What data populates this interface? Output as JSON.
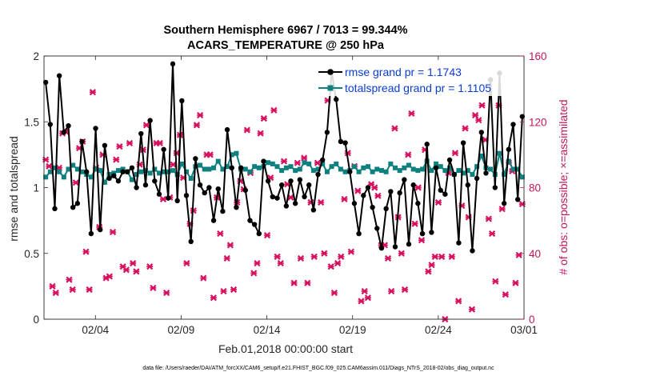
{
  "chart_data": {
    "type": "line",
    "title_line1": "Southern Hemisphere 6967 / 7013 = 99.344%",
    "title_line2": "ACARS_TEMPERATURE @ 250 hPa",
    "xlabel": "Feb.01,2018 00:00:00 start",
    "ylabel_left": "rmse and totalspread",
    "ylabel_right": "# of obs: o=possible; ×=assimilated",
    "xlim": [
      1.0,
      29.0
    ],
    "ylim_left": [
      0,
      2
    ],
    "ylim_right": [
      0,
      160
    ],
    "x_ticks": [
      {
        "x": 4,
        "label": "02/04"
      },
      {
        "x": 9,
        "label": "02/09"
      },
      {
        "x": 14,
        "label": "02/14"
      },
      {
        "x": 19,
        "label": "02/19"
      },
      {
        "x": 24,
        "label": "02/24"
      },
      {
        "x": 29,
        "label": "03/01"
      }
    ],
    "y_ticks_left": [
      "0",
      "0.5",
      "1",
      "1.5",
      "2"
    ],
    "y_ticks_right": [
      "0",
      "40",
      "80",
      "120",
      "160"
    ],
    "footer": "data file: /Users/raeder/DAI/ATM_forcXX/CAM6_setup/f.e21.FHIST_BGC.f09_025.CAM6assim.011/Diags_NTrS_2018-02/obs_diag_output.nc",
    "colors": {
      "rmse": "#000000",
      "spread": "#0f8080",
      "obs": "#d7105f",
      "legend_text": "#0a3cd7"
    },
    "series": [
      {
        "name": "rmse grand pr = 1.1743",
        "values": [
          1.8,
          1.48,
          0.84,
          1.85,
          1.42,
          1.47,
          0.85,
          0.88,
          1.35,
          1.12,
          0.65,
          1.45,
          0.68,
          1.32,
          1.07,
          1.09,
          1.05,
          1.12,
          1.12,
          1.15,
          1.0,
          1.41,
          1.02,
          1.51,
          1.05,
          0.95,
          1.29,
          0.92,
          1.94,
          0.9,
          1.66,
          0.94,
          0.59,
          1.22,
          1.02,
          0.96,
          1.0,
          0.75,
          0.99,
          0.82,
          1.44,
          1.15,
          0.85,
          1.15,
          0.98,
          0.75,
          0.72,
          0.65,
          1.2,
          1.05,
          0.93,
          0.92,
          1.02,
          0.86,
          1.05,
          0.88,
          1.06,
          0.93,
          1.02,
          0.83,
          1.1,
          1.21,
          1.42,
          1.88,
          1.67,
          1.35,
          1.34,
          1.12,
          0.88,
          0.65,
          0.94,
          1.0,
          0.85,
          0.69,
          0.54,
          0.84,
          0.97,
          0.55,
          0.96,
          1.06,
          0.57,
          1.02,
          0.88,
          0.65,
          1.33,
          0.66,
          1.15,
          0.98,
          0.95,
          1.21,
          1.1,
          0.58,
          1.34,
          1.02,
          0.52,
          1.07,
          1.42,
          1.11,
          1.82,
          1.0,
          1.87,
          0.88,
          1.29,
          1.48,
          0.91,
          1.54
        ]
      },
      {
        "name": "totalspread grand pr = 1.1105",
        "values": [
          1.08,
          1.12,
          1.15,
          1.12,
          1.08,
          1.14,
          1.17,
          1.14,
          1.12,
          1.1,
          1.08,
          1.14,
          1.13,
          1.04,
          1.1,
          1.11,
          1.13,
          1.14,
          1.12,
          1.06,
          1.1,
          1.12,
          1.13,
          1.11,
          1.14,
          1.11,
          1.12,
          1.12,
          1.13,
          1.1,
          1.18,
          1.12,
          1.07,
          1.16,
          1.17,
          1.14,
          1.14,
          1.15,
          1.2,
          1.14,
          1.16,
          1.25,
          1.26,
          1.14,
          1.14,
          1.12,
          1.16,
          1.15,
          1.16,
          1.19,
          1.18,
          1.16,
          1.13,
          1.15,
          1.16,
          1.13,
          1.14,
          1.19,
          1.18,
          1.13,
          1.14,
          1.18,
          1.12,
          1.16,
          1.18,
          1.14,
          1.12,
          1.13,
          1.16,
          1.12,
          1.15,
          1.16,
          1.12,
          1.14,
          1.13,
          1.12,
          1.18,
          1.15,
          1.13,
          1.15,
          1.17,
          1.14,
          1.13,
          1.14,
          1.2,
          1.13,
          1.18,
          1.16,
          1.13,
          1.15,
          1.1,
          1.13,
          1.11,
          1.13,
          1.1,
          1.16,
          1.24,
          1.15,
          1.14,
          1.1,
          1.26,
          1.1,
          1.2,
          1.14,
          1.14,
          1.08
        ]
      },
      {
        "name": "assimilated",
        "values": [
          97,
          93,
          20,
          16,
          92,
          113,
          114,
          24,
          18,
          83,
          104,
          108,
          41,
          18,
          138,
          92,
          56,
          100,
          25,
          26,
          53,
          97,
          105,
          32,
          30,
          107,
          34,
          29,
          94,
          103,
          118,
          32,
          19,
          107,
          107,
          73,
          16,
          74,
          94,
          101,
          112,
          86,
          34,
          58,
          66,
          118,
          124,
          25,
          100,
          100,
          13,
          74,
          52,
          17,
          37,
          45,
          18,
          71,
          84,
          79,
          115,
          89,
          28,
          34,
          113,
          122,
          51,
          86,
          127,
          38,
          34,
          96,
          82,
          74,
          22,
          95,
          37,
          98,
          22,
          71,
          38,
          95,
          71,
          40,
          133,
          32,
          16,
          34,
          38,
          73,
          101,
          41,
          93,
          78,
          11,
          17,
          13,
          82,
          80,
          75,
          45,
          45,
          37,
          17,
          116,
          62,
          40,
          18,
          100,
          125,
          58,
          80,
          48,
          103,
          29,
          33,
          38,
          71,
          38,
          0,
          89,
          38,
          101,
          11,
          69,
          116,
          62,
          6,
          124,
          121,
          130,
          109,
          61,
          52,
          23,
          130,
          67,
          15,
          95,
          90,
          22,
          39,
          70
        ]
      }
    ]
  }
}
